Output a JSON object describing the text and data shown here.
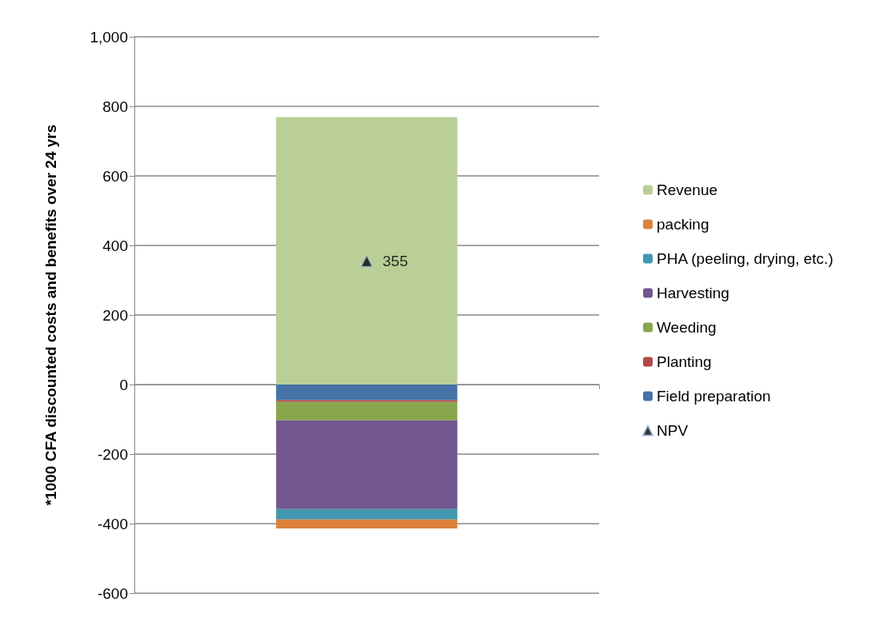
{
  "chart_data": {
    "type": "bar",
    "stacked": true,
    "categories": [
      null
    ],
    "ylabel": "*1000 CFA discounted costs and benefits over 24 yrs",
    "ylim": [
      -600,
      1000
    ],
    "yticks": [
      -600,
      -400,
      -200,
      0,
      200,
      400,
      600,
      800,
      {
        "value": 1000,
        "label": "1,000"
      }
    ],
    "grid": "y",
    "legend": "right",
    "series": [
      {
        "name": "Field preparation",
        "color": "#4573a8",
        "values": [
          -45
        ]
      },
      {
        "name": "Planting",
        "color": "#b04a47",
        "values": [
          -5
        ]
      },
      {
        "name": "Weeding",
        "color": "#8aa64d",
        "values": [
          -53
        ]
      },
      {
        "name": "Harvesting",
        "color": "#72588e",
        "values": [
          -255
        ]
      },
      {
        "name": "PHA (peeling, drying, etc.)",
        "color": "#4298b0",
        "values": [
          -30
        ]
      },
      {
        "name": "packing",
        "color": "#dc823c",
        "values": [
          -26
        ]
      },
      {
        "name": "Revenue",
        "color": "#bacf96",
        "values": [
          769
        ]
      },
      {
        "name": "NPV",
        "type": "scatter",
        "color": "#000000",
        "marker": "triangle",
        "values": [
          355
        ],
        "value_labels": [
          "355"
        ]
      }
    ]
  }
}
